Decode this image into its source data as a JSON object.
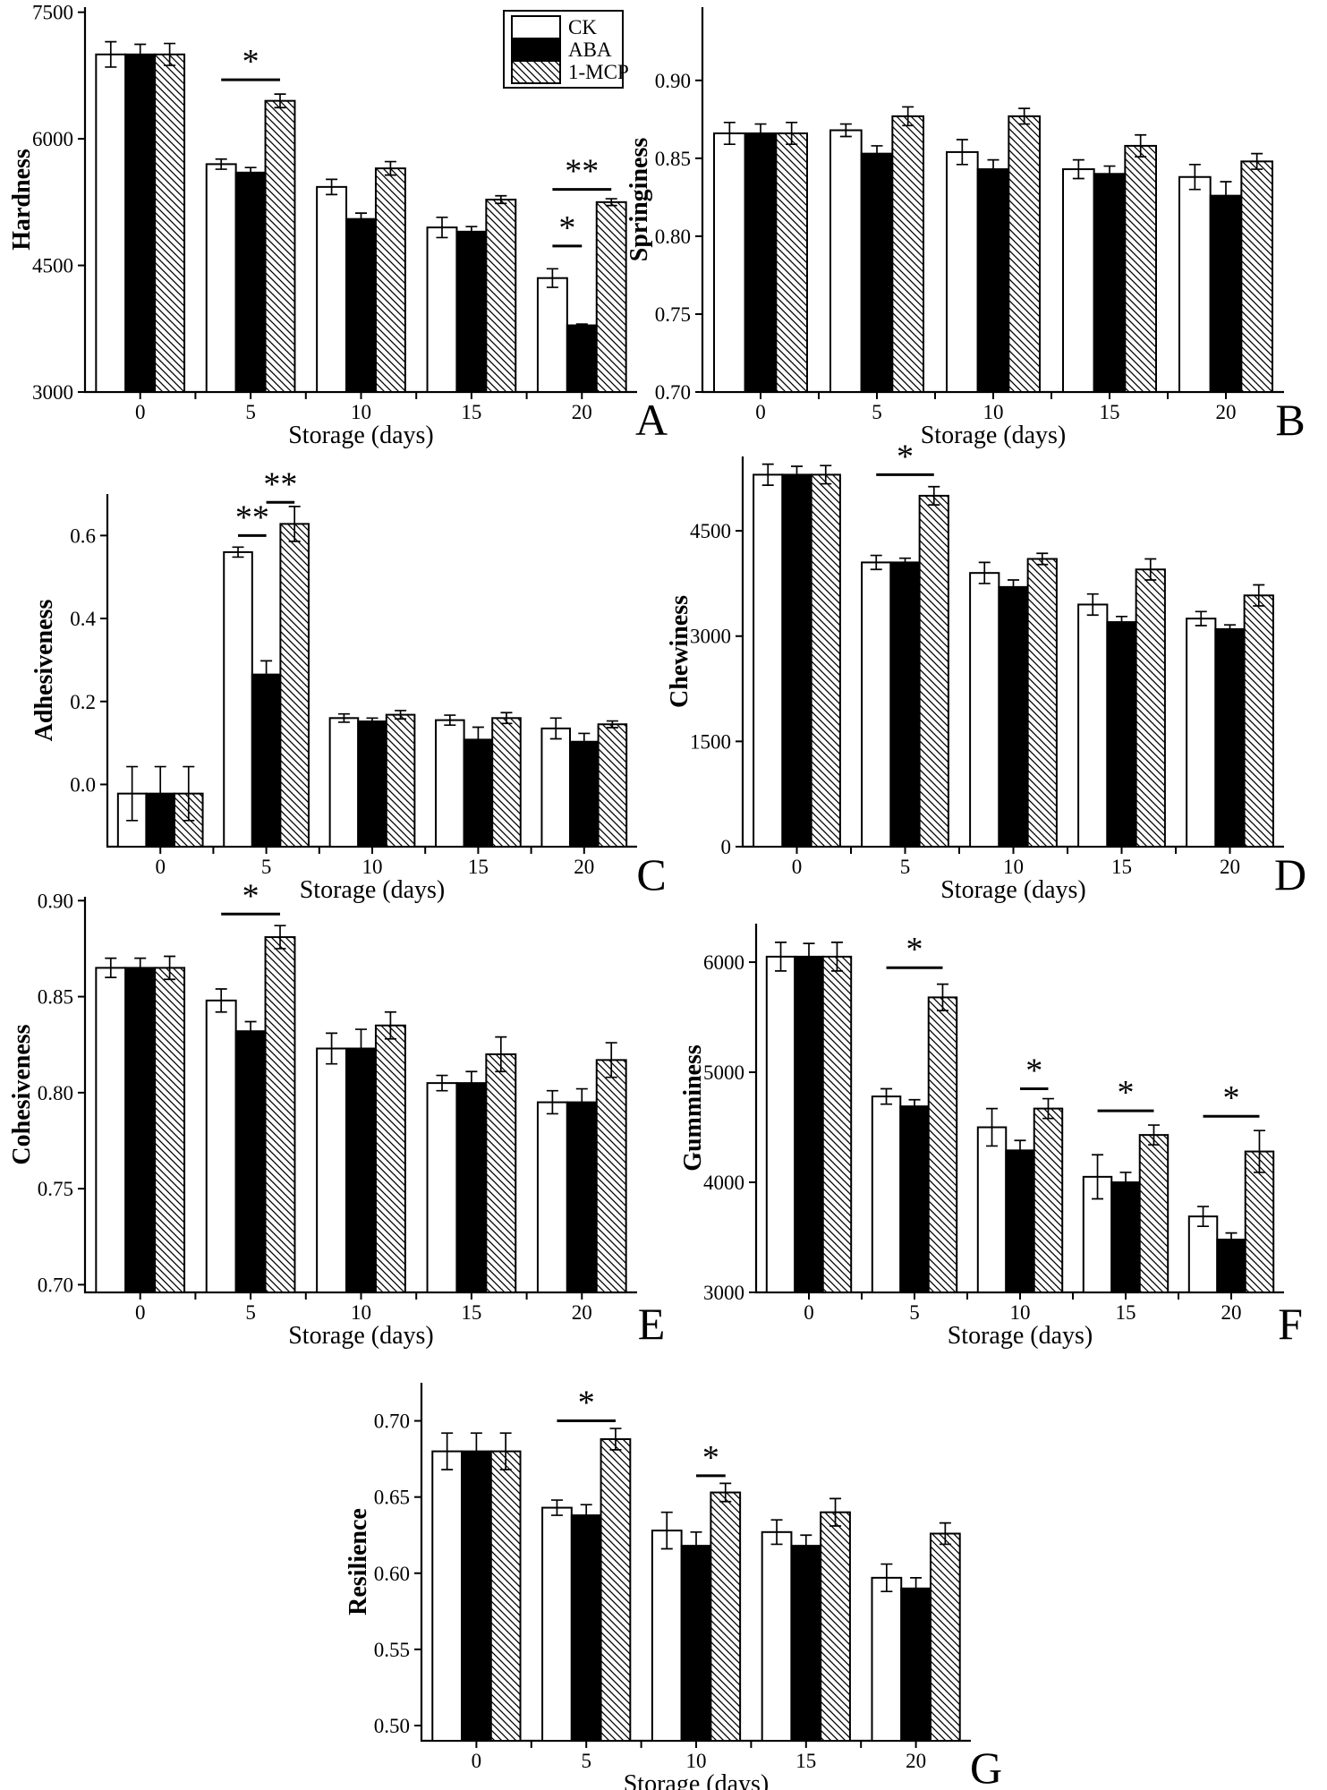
{
  "figure": {
    "x_axis_label": "Storage (days)",
    "categories": [
      "0",
      "5",
      "10",
      "15",
      "20"
    ],
    "colors": {
      "ink": "#000000",
      "paper": "#ffffff"
    },
    "legend": {
      "items": [
        {
          "label": "CK",
          "swatch": "solid-white"
        },
        {
          "label": "ABA",
          "swatch": "solid-black"
        },
        {
          "label": "1-MCP",
          "swatch": "diagonal-hatch"
        }
      ]
    }
  },
  "chart_data": [
    {
      "panel": "A",
      "type": "bar",
      "ylabel": "Hardness",
      "categories": [
        "0",
        "5",
        "10",
        "15",
        "20"
      ],
      "ylim": [
        3000,
        7560
      ],
      "yticks": [
        3000,
        4500,
        6000,
        7500
      ],
      "ytick_labels": [
        "3000",
        "4500",
        "6000",
        "7500"
      ],
      "series": [
        {
          "name": "CK",
          "values": [
            7000,
            5700,
            5430,
            4950,
            4350
          ],
          "errors": [
            150,
            60,
            90,
            120,
            110
          ]
        },
        {
          "name": "ABA",
          "values": [
            7000,
            5600,
            5050,
            4900,
            3790
          ],
          "errors": [
            120,
            60,
            70,
            60,
            15
          ]
        },
        {
          "name": "1-MCP",
          "values": [
            7000,
            6450,
            5650,
            5280,
            5250
          ],
          "errors": [
            130,
            80,
            80,
            45,
            40
          ]
        }
      ],
      "significance": [
        {
          "group": 1,
          "from": 0,
          "to": 2,
          "y": 6700,
          "label": "*"
        },
        {
          "group": 4,
          "from": 0,
          "to": 1,
          "y": 4730,
          "label": "*"
        },
        {
          "group": 4,
          "from": 0,
          "to": 2,
          "y": 5400,
          "label": "**"
        }
      ]
    },
    {
      "panel": "B",
      "type": "bar",
      "ylabel": "Springiness",
      "categories": [
        "0",
        "5",
        "10",
        "15",
        "20"
      ],
      "ylim": [
        0.7,
        0.947
      ],
      "yticks": [
        0.7,
        0.75,
        0.8,
        0.85,
        0.9
      ],
      "ytick_labels": [
        "0.70",
        "0.75",
        "0.80",
        "0.85",
        "0.90"
      ],
      "series": [
        {
          "name": "CK",
          "values": [
            0.866,
            0.868,
            0.854,
            0.843,
            0.838
          ],
          "errors": [
            0.007,
            0.004,
            0.008,
            0.006,
            0.008
          ]
        },
        {
          "name": "ABA",
          "values": [
            0.866,
            0.853,
            0.843,
            0.84,
            0.826
          ],
          "errors": [
            0.006,
            0.005,
            0.006,
            0.005,
            0.009
          ]
        },
        {
          "name": "1-MCP",
          "values": [
            0.866,
            0.877,
            0.877,
            0.858,
            0.848
          ],
          "errors": [
            0.007,
            0.006,
            0.005,
            0.007,
            0.005
          ]
        }
      ],
      "significance": []
    },
    {
      "panel": "C",
      "type": "bar",
      "ylabel": "Adhesiveness",
      "categories": [
        "0",
        "5",
        "10",
        "15",
        "20"
      ],
      "ylim": [
        -0.15,
        0.7
      ],
      "yticks": [
        0.0,
        0.2,
        0.4,
        0.6
      ],
      "ytick_labels": [
        "0.0",
        "0.2",
        "0.4",
        "0.6"
      ],
      "series": [
        {
          "name": "CK",
          "values": [
            -0.022,
            0.56,
            0.16,
            0.155,
            0.135
          ],
          "errors": [
            0.065,
            0.012,
            0.01,
            0.012,
            0.025
          ]
        },
        {
          "name": "ABA",
          "values": [
            -0.022,
            0.265,
            0.152,
            0.108,
            0.103
          ],
          "errors": [
            0.065,
            0.033,
            0.008,
            0.03,
            0.02
          ]
        },
        {
          "name": "1-MCP",
          "values": [
            -0.022,
            0.628,
            0.168,
            0.16,
            0.145
          ],
          "errors": [
            0.065,
            0.042,
            0.01,
            0.013,
            0.008
          ]
        }
      ],
      "significance": [
        {
          "group": 1,
          "from": 0,
          "to": 1,
          "y": 0.6,
          "label": "**"
        },
        {
          "group": 1,
          "from": 1,
          "to": 2,
          "y": 0.68,
          "label": "**"
        }
      ]
    },
    {
      "panel": "D",
      "type": "bar",
      "ylabel": "Chewiness",
      "categories": [
        "0",
        "5",
        "10",
        "15",
        "20"
      ],
      "ylim": [
        0,
        5560
      ],
      "yticks": [
        0,
        1500,
        3000,
        4500
      ],
      "ytick_labels": [
        "0",
        "1500",
        "3000",
        "4500"
      ],
      "series": [
        {
          "name": "CK",
          "values": [
            5300,
            4050,
            3900,
            3450,
            3250
          ],
          "errors": [
            150,
            100,
            150,
            150,
            100
          ]
        },
        {
          "name": "ABA",
          "values": [
            5300,
            4050,
            3700,
            3200,
            3100
          ],
          "errors": [
            120,
            60,
            100,
            80,
            60
          ]
        },
        {
          "name": "1-MCP",
          "values": [
            5300,
            5000,
            4100,
            3950,
            3580
          ],
          "errors": [
            130,
            130,
            80,
            150,
            150
          ]
        }
      ],
      "significance": [
        {
          "group": 1,
          "from": 0,
          "to": 2,
          "y": 5300,
          "label": "*"
        }
      ]
    },
    {
      "panel": "E",
      "type": "bar",
      "ylabel": "Cohesiveness",
      "categories": [
        "0",
        "5",
        "10",
        "15",
        "20"
      ],
      "ylim": [
        0.696,
        0.902
      ],
      "yticks": [
        0.7,
        0.75,
        0.8,
        0.85,
        0.9
      ],
      "ytick_labels": [
        "0.70",
        "0.75",
        "0.80",
        "0.85",
        "0.90"
      ],
      "series": [
        {
          "name": "CK",
          "values": [
            0.865,
            0.848,
            0.823,
            0.805,
            0.795
          ],
          "errors": [
            0.005,
            0.006,
            0.008,
            0.004,
            0.006
          ]
        },
        {
          "name": "ABA",
          "values": [
            0.865,
            0.832,
            0.823,
            0.805,
            0.795
          ],
          "errors": [
            0.005,
            0.005,
            0.01,
            0.006,
            0.007
          ]
        },
        {
          "name": "1-MCP",
          "values": [
            0.865,
            0.881,
            0.835,
            0.82,
            0.817
          ],
          "errors": [
            0.006,
            0.006,
            0.007,
            0.009,
            0.009
          ]
        }
      ],
      "significance": [
        {
          "group": 1,
          "from": 0,
          "to": 2,
          "y": 0.893,
          "label": "*"
        }
      ]
    },
    {
      "panel": "F",
      "type": "bar",
      "ylabel": "Gumminess",
      "categories": [
        "0",
        "5",
        "10",
        "15",
        "20"
      ],
      "ylim": [
        3000,
        6350
      ],
      "yticks": [
        3000,
        4000,
        5000,
        6000
      ],
      "ytick_labels": [
        "3000",
        "4000",
        "5000",
        "6000"
      ],
      "series": [
        {
          "name": "CK",
          "values": [
            6050,
            4780,
            4500,
            4050,
            3690
          ],
          "errors": [
            130,
            70,
            170,
            200,
            90
          ]
        },
        {
          "name": "ABA",
          "values": [
            6050,
            4690,
            4290,
            4000,
            3480
          ],
          "errors": [
            120,
            60,
            90,
            90,
            60
          ]
        },
        {
          "name": "1-MCP",
          "values": [
            6050,
            5680,
            4670,
            4430,
            4280
          ],
          "errors": [
            130,
            120,
            90,
            90,
            190
          ]
        }
      ],
      "significance": [
        {
          "group": 1,
          "from": 0,
          "to": 2,
          "y": 5950,
          "label": "*"
        },
        {
          "group": 2,
          "from": 1,
          "to": 2,
          "y": 4850,
          "label": "*"
        },
        {
          "group": 3,
          "from": 0,
          "to": 2,
          "y": 4650,
          "label": "*"
        },
        {
          "group": 4,
          "from": 0,
          "to": 2,
          "y": 4600,
          "label": "*"
        }
      ]
    },
    {
      "panel": "G",
      "type": "bar",
      "ylabel": "Resilience",
      "categories": [
        "0",
        "5",
        "10",
        "15",
        "20"
      ],
      "ylim": [
        0.49,
        0.725
      ],
      "yticks": [
        0.5,
        0.55,
        0.6,
        0.65,
        0.7
      ],
      "ytick_labels": [
        "0.50",
        "0.55",
        "0.60",
        "0.65",
        "0.70"
      ],
      "series": [
        {
          "name": "CK",
          "values": [
            0.68,
            0.643,
            0.628,
            0.627,
            0.597
          ],
          "errors": [
            0.012,
            0.005,
            0.012,
            0.008,
            0.009
          ]
        },
        {
          "name": "ABA",
          "values": [
            0.68,
            0.638,
            0.618,
            0.618,
            0.59
          ],
          "errors": [
            0.012,
            0.007,
            0.009,
            0.007,
            0.007
          ]
        },
        {
          "name": "1-MCP",
          "values": [
            0.68,
            0.688,
            0.653,
            0.64,
            0.626
          ],
          "errors": [
            0.012,
            0.007,
            0.006,
            0.009,
            0.007
          ]
        }
      ],
      "significance": [
        {
          "group": 1,
          "from": 0,
          "to": 2,
          "y": 0.7,
          "label": "*"
        },
        {
          "group": 2,
          "from": 1,
          "to": 2,
          "y": 0.664,
          "label": "*"
        }
      ]
    }
  ]
}
